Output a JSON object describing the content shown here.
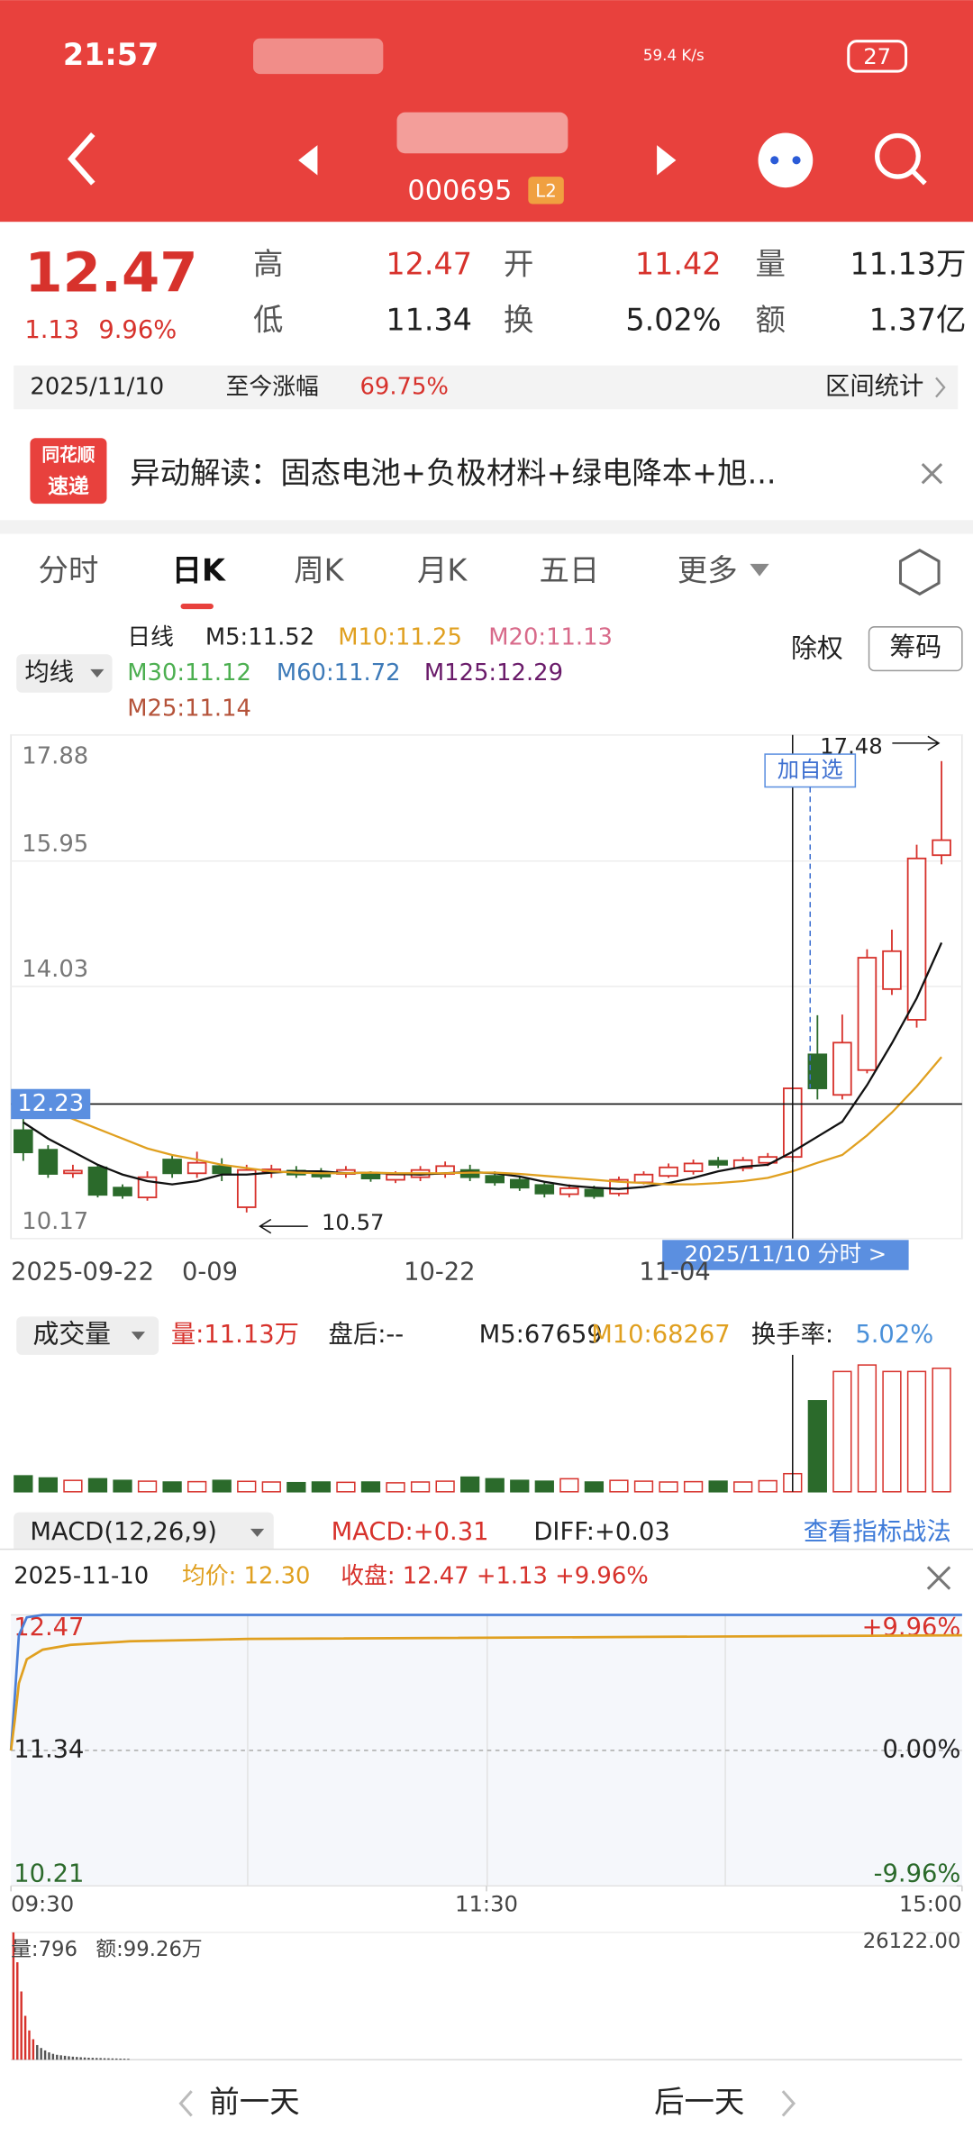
{
  "status": {
    "time": "21:57",
    "speed": "59.4 K/s",
    "battery": "27"
  },
  "header": {
    "code": "000695",
    "badge": "L2"
  },
  "quote": {
    "price": "12.47",
    "change": "1.13",
    "pct": "9.96%",
    "fields": [
      {
        "label": "高",
        "value": "12.47",
        "color": "#d7322c"
      },
      {
        "label": "开",
        "value": "11.42",
        "color": "#d7322c"
      },
      {
        "label": "量",
        "value": "11.13万",
        "color": "#222"
      },
      {
        "label": "低",
        "value": "11.34",
        "color": "#222"
      },
      {
        "label": "换",
        "value": "5.02%",
        "color": "#222"
      },
      {
        "label": "额",
        "value": "1.37亿",
        "color": "#222"
      }
    ]
  },
  "range": {
    "date": "2025/11/10",
    "label": "至今涨幅",
    "value": "69.75%",
    "stats": "区间统计"
  },
  "news": {
    "brand1": "同花顺",
    "brand2": "速递",
    "text": "异动解读：固态电池+负极材料+绿电降本+旭..."
  },
  "tabs": [
    "分时",
    "日K",
    "周K",
    "月K",
    "五日",
    "更多"
  ],
  "ma": {
    "selector": "均线",
    "buttons": [
      "除权",
      "筹码"
    ],
    "items": [
      {
        "text": "日线",
        "color": "#222"
      },
      {
        "text": "M5:11.52",
        "color": "#222"
      },
      {
        "text": "M10:11.25",
        "color": "#e0a020"
      },
      {
        "text": "M20:11.13",
        "color": "#d86a8a"
      },
      {
        "text": "M30:11.12",
        "color": "#4caf50"
      },
      {
        "text": "M60:11.72",
        "color": "#3d7ab8"
      },
      {
        "text": "M125:12.29",
        "color": "#6a1b6a"
      },
      {
        "text": "M25:11.14",
        "color": "#b5533a"
      }
    ]
  },
  "kline": {
    "type": "candlestick",
    "ylim": [
      10.17,
      17.88
    ],
    "yticks": [
      10.17,
      14.03,
      15.95,
      17.88
    ],
    "crosshair": 12.23,
    "open": [
      11.83,
      11.53,
      11.17,
      11.26,
      10.95,
      10.8,
      11.38,
      11.17,
      11.28,
      10.65,
      11.2,
      11.21,
      11.18,
      11.16,
      11.15,
      11.07,
      11.11,
      11.16,
      11.22,
      11.13,
      11.07,
      10.99,
      10.85,
      10.92,
      10.86,
      11.03,
      11.13,
      11.2,
      11.36,
      11.25,
      11.33,
      11.42,
      12.99,
      12.37,
      12.75,
      13.99,
      13.52,
      16.04
    ],
    "close": [
      11.49,
      11.16,
      11.21,
      10.84,
      10.83,
      11.11,
      11.17,
      11.33,
      11.17,
      11.22,
      11.23,
      11.15,
      11.12,
      11.22,
      11.09,
      11.15,
      11.22,
      11.28,
      11.11,
      11.03,
      10.95,
      10.86,
      10.94,
      10.82,
      11.07,
      11.15,
      11.26,
      11.32,
      11.3,
      11.37,
      11.42,
      12.47,
      12.47,
      13.17,
      14.47,
      14.57,
      15.99,
      16.27
    ],
    "high": [
      12.01,
      11.6,
      11.3,
      11.3,
      11.0,
      11.2,
      11.45,
      11.5,
      11.4,
      11.3,
      11.3,
      11.28,
      11.25,
      11.28,
      11.2,
      11.2,
      11.28,
      11.35,
      11.3,
      11.2,
      11.12,
      11.05,
      11.0,
      10.98,
      11.12,
      11.2,
      11.32,
      11.38,
      11.42,
      11.42,
      11.48,
      12.47,
      13.59,
      13.6,
      14.6,
      14.9,
      16.2,
      17.48
    ],
    "low": [
      11.36,
      11.1,
      11.1,
      10.8,
      10.78,
      10.75,
      11.1,
      11.1,
      11.05,
      10.57,
      11.1,
      11.1,
      11.08,
      11.1,
      11.04,
      11.02,
      11.05,
      11.1,
      11.05,
      10.98,
      10.9,
      10.8,
      10.8,
      10.78,
      10.82,
      11.0,
      11.1,
      11.15,
      11.25,
      11.2,
      11.28,
      11.34,
      12.3,
      12.3,
      12.7,
      13.9,
      13.4,
      15.9
    ],
    "ma_lines": [
      {
        "color": "#111",
        "values": [
          11.95,
          11.7,
          11.5,
          11.3,
          11.15,
          11.05,
          11.0,
          11.05,
          11.15,
          11.15,
          11.18,
          11.2,
          11.2,
          11.17,
          11.18,
          11.16,
          11.15,
          11.17,
          11.19,
          11.17,
          11.12,
          11.04,
          10.98,
          10.95,
          10.93,
          10.96,
          11.02,
          11.1,
          11.2,
          11.27,
          11.3,
          11.5,
          11.73,
          11.96,
          12.52,
          13.16,
          13.85,
          14.7
        ]
      },
      {
        "color": "#e0a020",
        "values": [
          12.3,
          12.15,
          12.0,
          11.85,
          11.7,
          11.55,
          11.45,
          11.38,
          11.3,
          11.25,
          11.2,
          11.18,
          11.17,
          11.17,
          11.18,
          11.17,
          11.17,
          11.17,
          11.18,
          11.18,
          11.16,
          11.13,
          11.1,
          11.07,
          11.04,
          11.02,
          11.0,
          11.0,
          11.02,
          11.05,
          11.1,
          11.2,
          11.33,
          11.45,
          11.75,
          12.1,
          12.5,
          12.95
        ]
      }
    ],
    "high_label": "17.48",
    "low_label": "10.57",
    "add_watch": "加自选",
    "date_strip": "2025/11/10 分时 >",
    "date_labels": [
      "2025-09-22",
      "0-09",
      "10-22",
      "11-04"
    ]
  },
  "volume": {
    "title": "成交量",
    "header": [
      {
        "text": "量:11.13万",
        "color": "#d7322c"
      },
      {
        "text": "盘后:--",
        "color": "#222"
      },
      {
        "text": "M5:67659",
        "color": "#222"
      },
      {
        "text": "M10:68267",
        "color": "#e0a020"
      },
      {
        "text": "换手率:",
        "color": "#222"
      },
      {
        "text": "5.02%",
        "color": "#4a90d9"
      }
    ],
    "ylim": [
      0,
      80
    ],
    "values": [
      9.8,
      8.5,
      7,
      8,
      7,
      6.5,
      6,
      6.2,
      7,
      6.4,
      6,
      5.6,
      6,
      5.8,
      6,
      5.5,
      6,
      6.5,
      9,
      8,
      7,
      6.5,
      8,
      6,
      7,
      6.5,
      6,
      6.2,
      6.5,
      6,
      6.8,
      11.13,
      56,
      74,
      78,
      74,
      74,
      76
    ]
  },
  "macd": {
    "title": "MACD(12,26,9)",
    "macd": "MACD:+0.31",
    "diff": "DIFF:+0.03",
    "link": "查看指标战法"
  },
  "intraday": {
    "date": "2025-11-10",
    "avg": "均价: 12.30",
    "close": "收盘: 12.47 +1.13 +9.96%",
    "xlim": [
      0,
      240
    ],
    "xticks": [
      {
        "value": 0,
        "label": "09:30"
      },
      {
        "value": 120,
        "label": "11:30"
      },
      {
        "value": 240,
        "label": "15:00"
      }
    ],
    "ylim": [
      10.21,
      12.47
    ],
    "yticks": [
      10.21,
      11.34,
      12.47
    ],
    "y2lim": [
      -9.96,
      9.96
    ],
    "y2ticks": [
      {
        "value": 9.96,
        "label": "+9.96%"
      },
      {
        "value": 0,
        "label": "0.00%"
      },
      {
        "value": -9.96,
        "label": "-9.96%"
      }
    ],
    "x": [
      0,
      1,
      2,
      4,
      8,
      15,
      30,
      60,
      240
    ],
    "price": [
      11.34,
      11.8,
      12.3,
      12.45,
      12.47,
      12.47,
      12.47,
      12.47,
      12.47
    ],
    "avg_line": [
      11.34,
      11.6,
      11.9,
      12.1,
      12.18,
      12.22,
      12.25,
      12.27,
      12.3
    ],
    "vol_label": "量:796",
    "amt_label": "额:99.26万",
    "vol_ylim": [
      0,
      26122
    ],
    "vol_yticks": [
      {
        "value": 26122,
        "label": "26122.00"
      }
    ],
    "vol": [
      26122,
      20000,
      14000,
      9000,
      6000,
      4200,
      3000,
      2400,
      1900,
      1500,
      1200,
      1000,
      900,
      800,
      700,
      620,
      560,
      500,
      450,
      400,
      380,
      350,
      330,
      300,
      280,
      260,
      240,
      220,
      200,
      180
    ]
  },
  "footer": {
    "prev": "前一天",
    "next": "后一天"
  }
}
